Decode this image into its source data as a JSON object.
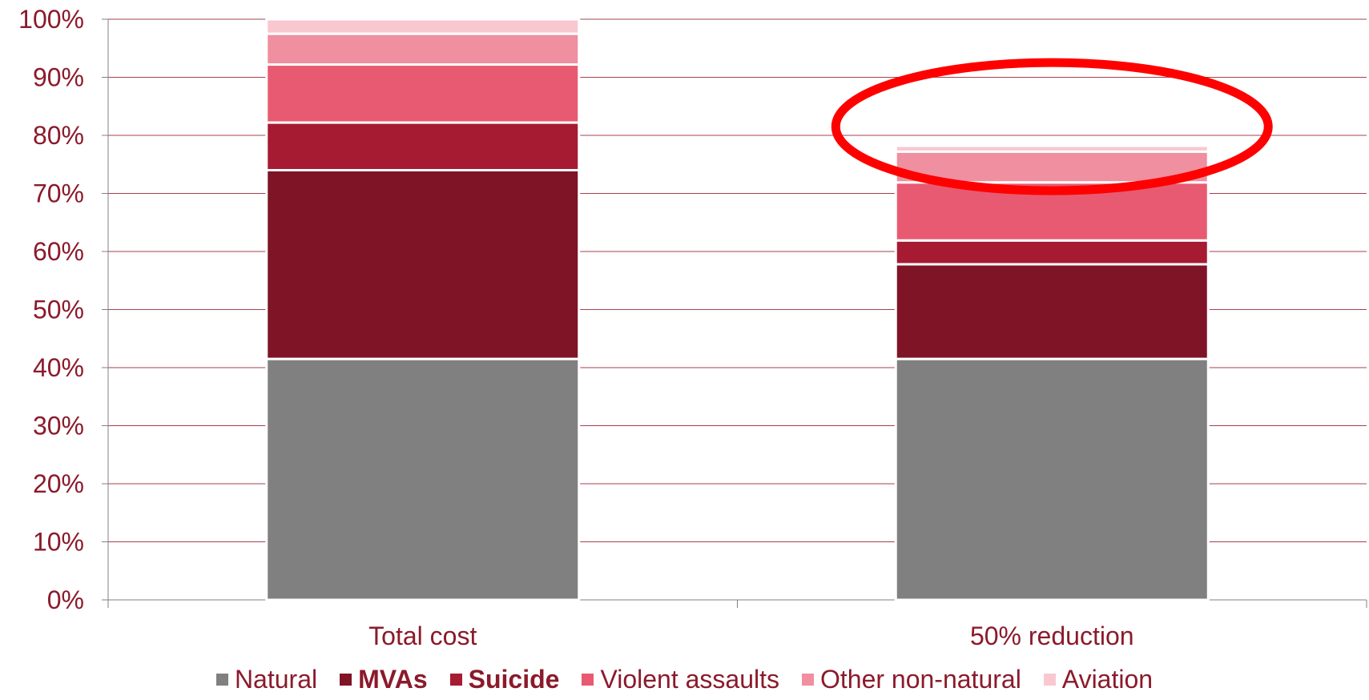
{
  "chart_data": {
    "type": "bar",
    "stacked": true,
    "categories": [
      "Total cost",
      "50% reduction"
    ],
    "ylim": [
      0,
      100
    ],
    "y_tick_step": 10,
    "y_tick_suffix": "%",
    "grid": true,
    "legend_position": "bottom",
    "series": [
      {
        "name": "Natural",
        "values": [
          41.5,
          41.5
        ],
        "color": "#808080",
        "bold": false
      },
      {
        "name": "MVAs",
        "values": [
          32.5,
          16.3
        ],
        "color": "#7E1426",
        "bold": true
      },
      {
        "name": "Suicide",
        "values": [
          8.2,
          4.1
        ],
        "color": "#A61A32",
        "bold": true
      },
      {
        "name": "Violent assaults",
        "values": [
          10.0,
          10.0
        ],
        "color": "#E85A71",
        "bold": false
      },
      {
        "name": "Other non-natural",
        "values": [
          5.3,
          5.3
        ],
        "color": "#EF8F9F",
        "bold": false
      },
      {
        "name": "Aviation",
        "values": [
          2.5,
          1.0
        ],
        "color": "#F9C7D0",
        "bold": false
      }
    ],
    "annotation": {
      "type": "ellipse",
      "color": "#FF0000",
      "target": "50% reduction top"
    }
  }
}
